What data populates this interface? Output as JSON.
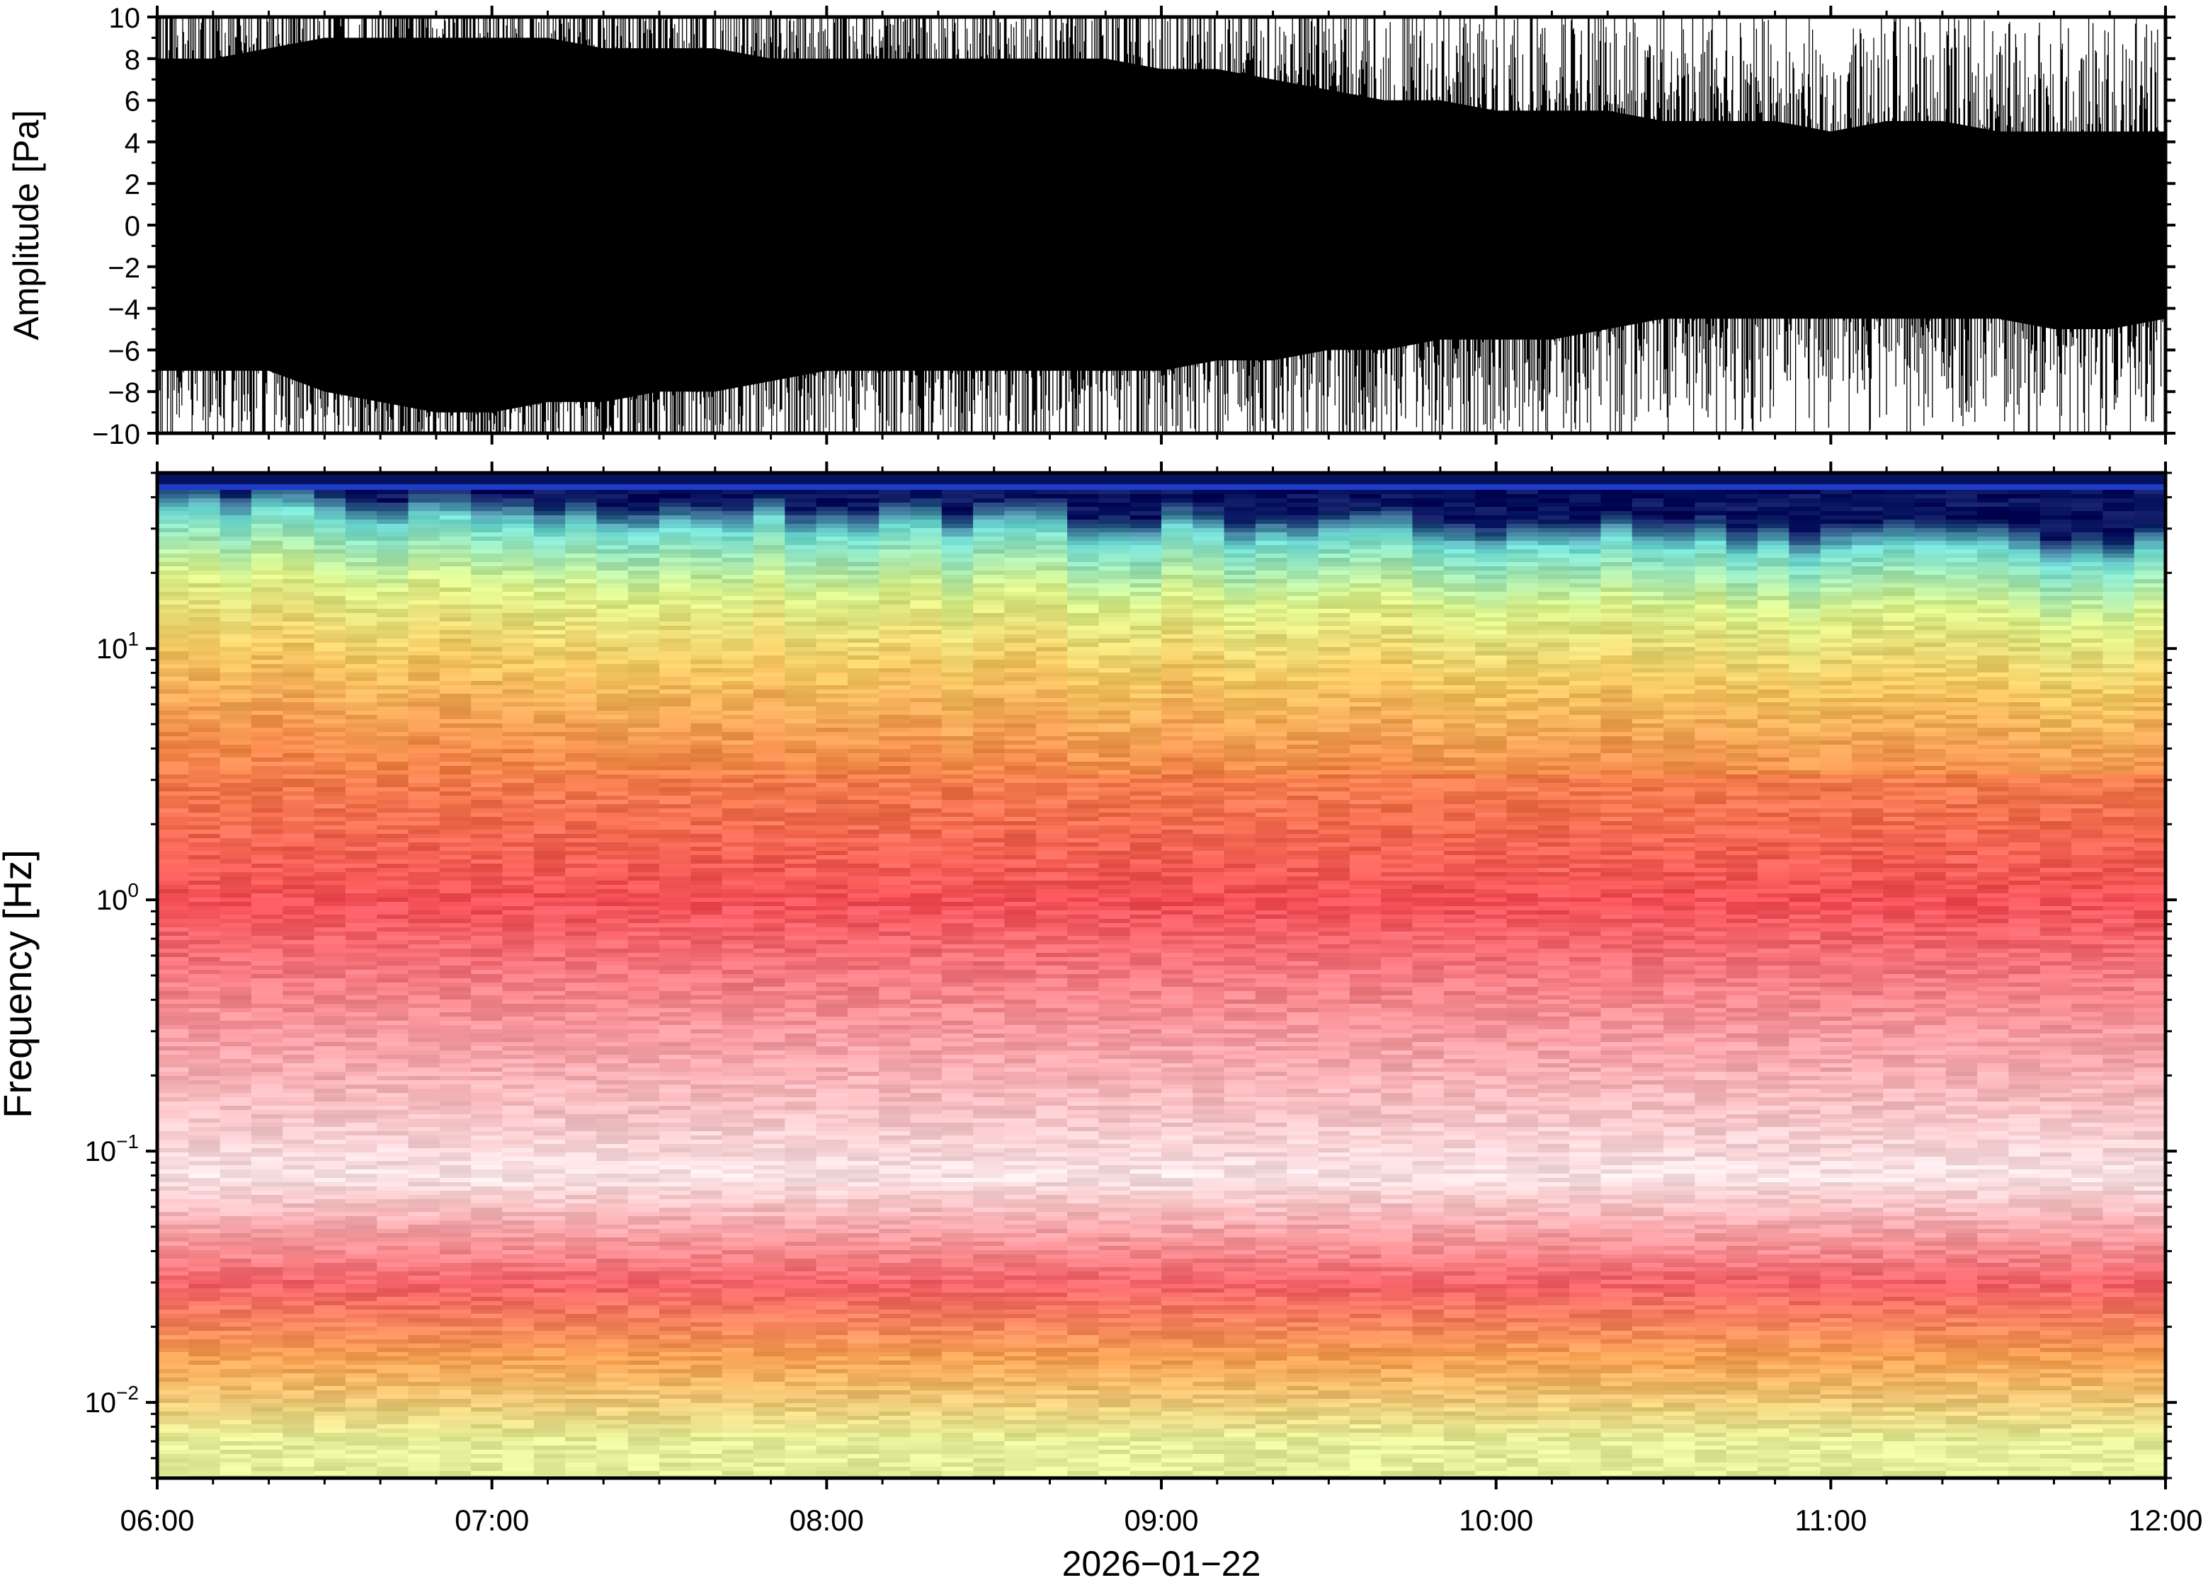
{
  "chart_data": [
    {
      "type": "line",
      "panel": "waveform",
      "ylabel": "Amplitude [Pa]",
      "ylim": [
        -10,
        10
      ],
      "yticks": [
        -10,
        -8,
        -6,
        -4,
        -2,
        0,
        2,
        4,
        6,
        8,
        10
      ],
      "ytick_labels": [
        "−10",
        "−8",
        "−6",
        "−4",
        "−2",
        "0",
        "2",
        "4",
        "6",
        "8",
        "10"
      ],
      "xlim": [
        "06:00",
        "12:00"
      ],
      "line_color": "#000000",
      "envelope": {
        "x": [
          "06:00",
          "06:10",
          "06:20",
          "06:30",
          "06:40",
          "06:50",
          "07:00",
          "07:10",
          "07:20",
          "07:30",
          "07:40",
          "07:50",
          "08:00",
          "08:10",
          "08:20",
          "08:30",
          "08:40",
          "08:50",
          "09:00",
          "09:10",
          "09:20",
          "09:30",
          "09:40",
          "09:50",
          "10:00",
          "10:10",
          "10:20",
          "10:30",
          "10:40",
          "10:50",
          "11:00",
          "11:10",
          "11:20",
          "11:30",
          "11:40",
          "11:50",
          "12:00"
        ],
        "upper": [
          8,
          8,
          8.5,
          9,
          9,
          9,
          9,
          9,
          8.5,
          8.5,
          8.5,
          8,
          8,
          8,
          8,
          8,
          8,
          8,
          7.5,
          7.5,
          7,
          6.5,
          6,
          6,
          5.5,
          5.5,
          5.5,
          5,
          5,
          5,
          4.5,
          5,
          5,
          4.5,
          4.5,
          4.5,
          4.5
        ],
        "lower": [
          -7,
          -7,
          -7,
          -8,
          -8.5,
          -9,
          -9,
          -8.5,
          -8.5,
          -8,
          -8,
          -7.5,
          -7,
          -7,
          -7,
          -7,
          -7,
          -7,
          -7,
          -6.5,
          -6.5,
          -6,
          -6,
          -5.5,
          -5.5,
          -5.5,
          -5,
          -4.5,
          -4.5,
          -4.5,
          -4.5,
          -4.5,
          -4.5,
          -4.5,
          -5,
          -5,
          -4.5
        ]
      }
    },
    {
      "type": "heatmap",
      "panel": "spectrogram",
      "ylabel": "Frequency [Hz]",
      "xlabel": "2026−01−22",
      "yscale": "log",
      "ylim": [
        0.005,
        50
      ],
      "yticks": [
        0.01,
        0.1,
        1,
        10
      ],
      "ytick_labels": [
        {
          "base": "10",
          "exp": "−2"
        },
        {
          "base": "10",
          "exp": "−1"
        },
        {
          "base": "10",
          "exp": "0"
        },
        {
          "base": "10",
          "exp": "1"
        }
      ],
      "x_categories": [
        "06:00",
        "07:00",
        "08:00",
        "09:00",
        "10:00",
        "11:00",
        "12:00"
      ],
      "colormap": [
        "#07125e",
        "#1f3cc8",
        "#48b4e6",
        "#7ce6cf",
        "#d8f48e",
        "#f6d76a",
        "#f6a04c",
        "#f46a4a",
        "#f5535a",
        "#f7909a",
        "#fbd6da",
        "#ffffff"
      ],
      "frequency_bands": [
        {
          "hz": 45,
          "color": "#07125e"
        },
        {
          "hz": 35,
          "color": "#6fdcd3"
        },
        {
          "hz": 20,
          "color": "#d9f28c"
        },
        {
          "hz": 10,
          "color": "#f4c862"
        },
        {
          "hz": 4,
          "color": "#f3884a"
        },
        {
          "hz": 1,
          "color": "#f45058"
        },
        {
          "hz": 0.3,
          "color": "#f79aa0"
        },
        {
          "hz": 0.08,
          "color": "#fbe4e6"
        },
        {
          "hz": 0.03,
          "color": "#f56268"
        },
        {
          "hz": 0.015,
          "color": "#f7a353"
        },
        {
          "hz": 0.007,
          "color": "#e4f09a"
        }
      ]
    }
  ],
  "x_axis": {
    "ticks": [
      "06:00",
      "07:00",
      "08:00",
      "09:00",
      "10:00",
      "11:00",
      "12:00"
    ],
    "date_label": "2026−01−22"
  }
}
